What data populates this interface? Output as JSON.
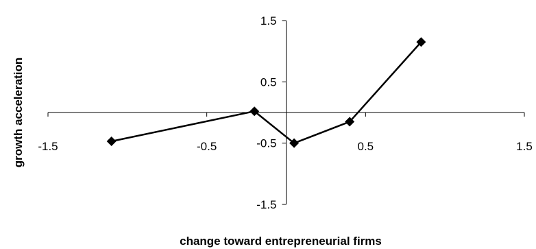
{
  "chart_data": {
    "type": "line",
    "xlabel": "change toward entrepreneurial firms",
    "ylabel": "growth acceleration",
    "xlim": [
      -1.5,
      1.5
    ],
    "ylim": [
      -1.5,
      1.5
    ],
    "x_ticks": [
      -1.5,
      -0.5,
      0.5,
      1.5
    ],
    "y_ticks": [
      1.5,
      0.5,
      -0.5,
      -1.5
    ],
    "x_tick_labels": [
      "-1.5",
      "-0.5",
      "0.5",
      "1.5"
    ],
    "y_tick_labels": [
      "1.5",
      "0.5",
      "-0.5",
      "-1.5"
    ],
    "grid": false,
    "legend": "none",
    "marker": "diamond",
    "series": [
      {
        "x": [
          -1.1,
          -0.2,
          0.05,
          0.4,
          0.85
        ],
        "y": [
          -0.47,
          0.02,
          -0.5,
          -0.15,
          1.15
        ],
        "color": "#000000"
      }
    ]
  }
}
